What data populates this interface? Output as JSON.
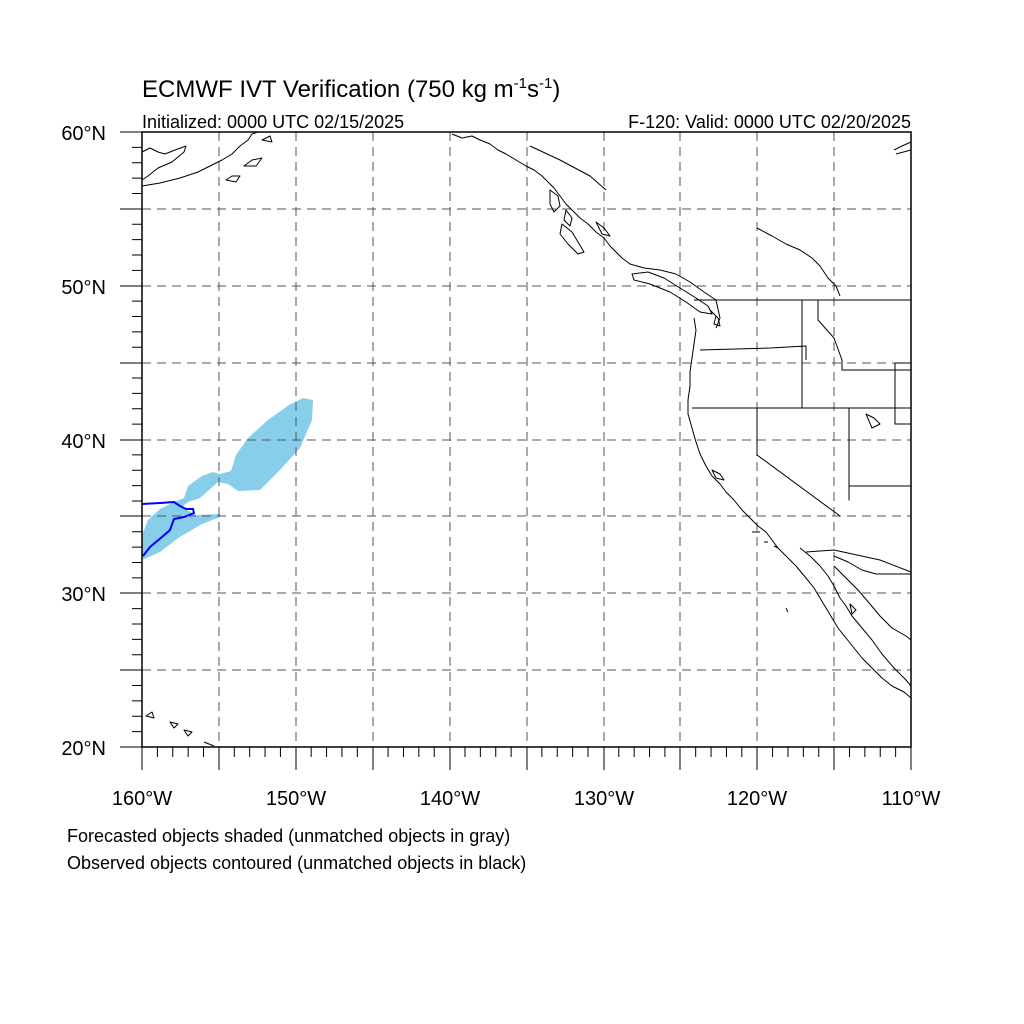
{
  "title": {
    "main_prefix": "ECMWF IVT Verification (750 kg m",
    "exp1": "-1",
    "mid": "s",
    "exp2": "-1",
    "suffix": ")"
  },
  "subtitle": {
    "left": "Initialized: 0000 UTC 02/15/2025",
    "right": "F-120: Valid: 0000 UTC 02/20/2025"
  },
  "lat_labels": [
    "60°N",
    "50°N",
    "40°N",
    "30°N",
    "20°N"
  ],
  "lon_labels": [
    "160°W",
    "150°W",
    "140°W",
    "130°W",
    "120°W",
    "110°W"
  ],
  "footer": {
    "line1": "Forecasted objects shaded (unmatched objects in gray)",
    "line2": "Observed objects contoured (unmatched objects in black)"
  },
  "map": {
    "region": {
      "lon_min": -160,
      "lon_max": -110,
      "lat_min": 20,
      "lat_max": 60
    },
    "grid": "dashed every 5 degrees",
    "forecast_object_color": "#87ceeb",
    "observed_contour_color": "#0000ff",
    "coastline_color": "#000000"
  }
}
